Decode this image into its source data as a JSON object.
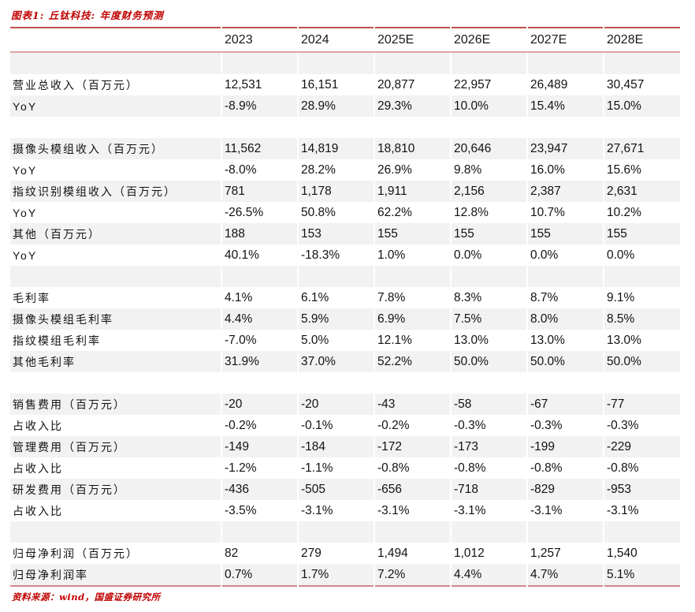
{
  "title": "图表1: 丘钛科技: 年度财务预测",
  "source_note": "资料来源：wind，国盛证券研究所",
  "colors": {
    "accent_red": "#c00000",
    "rule_top_bottom": "#c0504d",
    "rule_header": "#dfa3a1",
    "zebra_row": "#f2f2f2",
    "text": "#121212"
  },
  "chart_data": {
    "type": "table",
    "title": "图表1: 丘钛科技: 年度财务预测",
    "columns": [
      "",
      "2023",
      "2024",
      "2025E",
      "2026E",
      "2027E",
      "2028E"
    ],
    "rows": [
      {
        "spacer": true,
        "label": "",
        "values": [
          "",
          "",
          "",
          "",
          "",
          ""
        ]
      },
      {
        "label": "营业总收入（百万元）",
        "values": [
          "12,531",
          "16,151",
          "20,877",
          "22,957",
          "26,489",
          "30,457"
        ]
      },
      {
        "label": "YoY",
        "values": [
          "-8.9%",
          "28.9%",
          "29.3%",
          "10.0%",
          "15.4%",
          "15.0%"
        ]
      },
      {
        "spacer": true,
        "label": "",
        "values": [
          "",
          "",
          "",
          "",
          "",
          ""
        ]
      },
      {
        "label": "摄像头模组收入（百万元）",
        "values": [
          "11,562",
          "14,819",
          "18,810",
          "20,646",
          "23,947",
          "27,671"
        ]
      },
      {
        "label": "YoY",
        "values": [
          "-8.0%",
          "28.2%",
          "26.9%",
          "9.8%",
          "16.0%",
          "15.6%"
        ]
      },
      {
        "label": "指纹识别模组收入（百万元）",
        "values": [
          "781",
          "1,178",
          "1,911",
          "2,156",
          "2,387",
          "2,631"
        ]
      },
      {
        "label": "YoY",
        "values": [
          "-26.5%",
          "50.8%",
          "62.2%",
          "12.8%",
          "10.7%",
          "10.2%"
        ]
      },
      {
        "label": "其他（百万元）",
        "values": [
          "188",
          "153",
          "155",
          "155",
          "155",
          "155"
        ]
      },
      {
        "label": "YoY",
        "values": [
          "40.1%",
          "-18.3%",
          "1.0%",
          "0.0%",
          "0.0%",
          "0.0%"
        ]
      },
      {
        "spacer": true,
        "label": "",
        "values": [
          "",
          "",
          "",
          "",
          "",
          ""
        ]
      },
      {
        "label": "毛利率",
        "values": [
          "4.1%",
          "6.1%",
          "7.8%",
          "8.3%",
          "8.7%",
          "9.1%"
        ]
      },
      {
        "label": "摄像头模组毛利率",
        "values": [
          "4.4%",
          "5.9%",
          "6.9%",
          "7.5%",
          "8.0%",
          "8.5%"
        ]
      },
      {
        "label": "指纹模组毛利率",
        "values": [
          "-7.0%",
          "5.0%",
          "12.1%",
          "13.0%",
          "13.0%",
          "13.0%"
        ]
      },
      {
        "label": "其他毛利率",
        "values": [
          "31.9%",
          "37.0%",
          "52.2%",
          "50.0%",
          "50.0%",
          "50.0%"
        ]
      },
      {
        "spacer": true,
        "label": "",
        "values": [
          "",
          "",
          "",
          "",
          "",
          ""
        ]
      },
      {
        "label": "销售费用（百万元）",
        "values": [
          "-20",
          "-20",
          "-43",
          "-58",
          "-67",
          "-77"
        ]
      },
      {
        "label": "占收入比",
        "values": [
          "-0.2%",
          "-0.1%",
          "-0.2%",
          "-0.3%",
          "-0.3%",
          "-0.3%"
        ]
      },
      {
        "label": "管理费用（百万元）",
        "values": [
          "-149",
          "-184",
          "-172",
          "-173",
          "-199",
          "-229"
        ]
      },
      {
        "label": "占收入比",
        "values": [
          "-1.2%",
          "-1.1%",
          "-0.8%",
          "-0.8%",
          "-0.8%",
          "-0.8%"
        ]
      },
      {
        "label": "研发费用（百万元）",
        "values": [
          "-436",
          "-505",
          "-656",
          "-718",
          "-829",
          "-953"
        ]
      },
      {
        "label": "占收入比",
        "values": [
          "-3.5%",
          "-3.1%",
          "-3.1%",
          "-3.1%",
          "-3.1%",
          "-3.1%"
        ]
      },
      {
        "spacer": true,
        "label": "",
        "values": [
          "",
          "",
          "",
          "",
          "",
          ""
        ]
      },
      {
        "label": "归母净利润（百万元）",
        "values": [
          "82",
          "279",
          "1,494",
          "1,012",
          "1,257",
          "1,540"
        ]
      },
      {
        "label": "归母净利润率",
        "values": [
          "0.7%",
          "1.7%",
          "7.2%",
          "4.4%",
          "4.7%",
          "5.1%"
        ]
      }
    ],
    "source": "资料来源：wind，国盛证券研究所",
    "layout": {
      "zebra_striping": true,
      "first_shaded_row_index": 0,
      "grid": false
    }
  }
}
